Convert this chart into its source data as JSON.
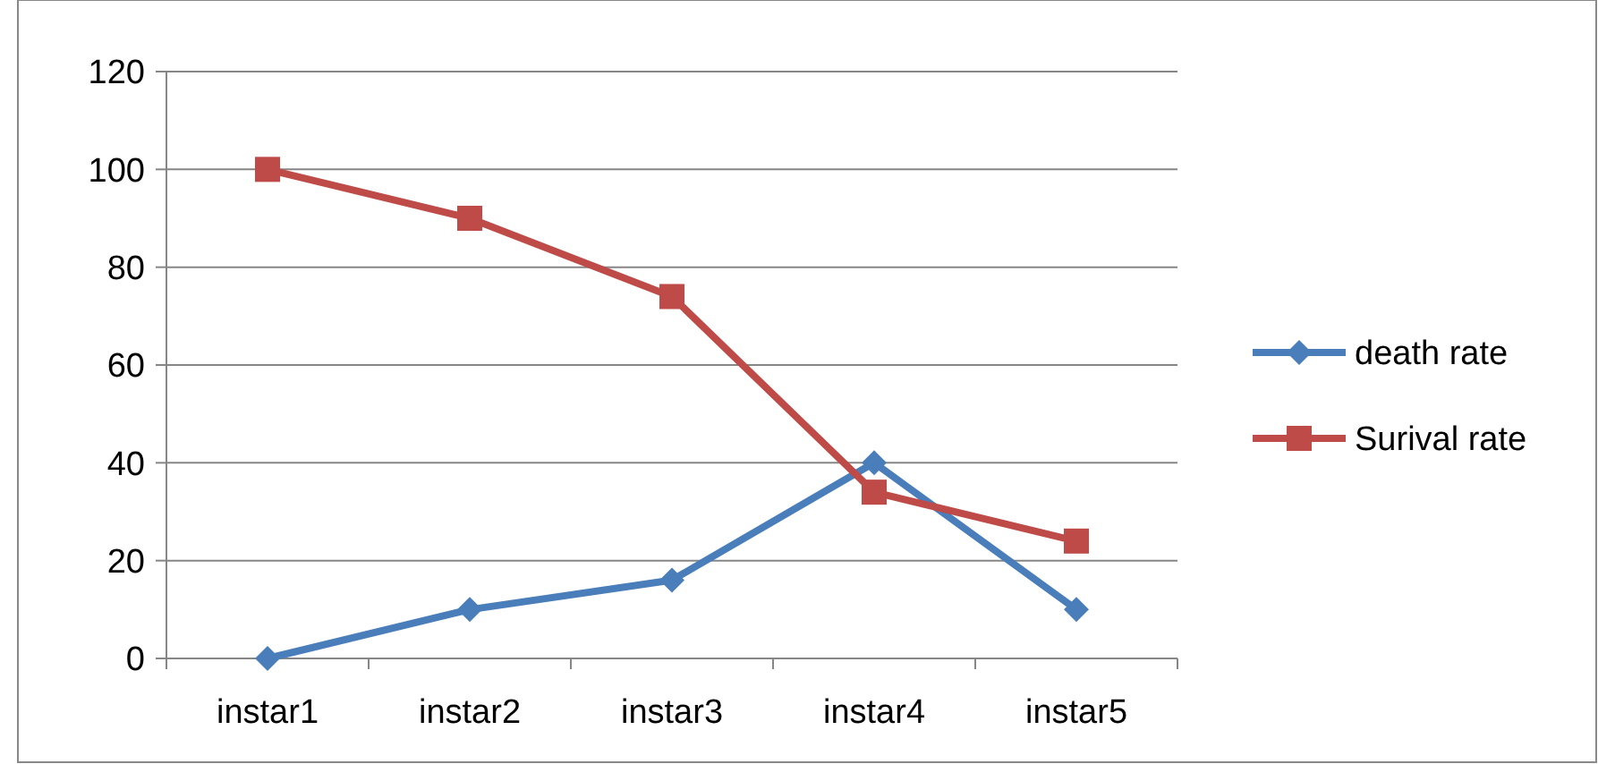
{
  "chart_data": {
    "type": "line",
    "categories": [
      "instar1",
      "instar2",
      "instar3",
      "instar4",
      "instar5"
    ],
    "series": [
      {
        "name": "death rate",
        "color": "#4a7ebb",
        "marker": "diamond",
        "values": [
          0,
          10,
          16,
          40,
          10
        ]
      },
      {
        "name": "Surival rate",
        "color": "#be4b48",
        "marker": "square",
        "values": [
          100,
          90,
          74,
          34,
          24
        ]
      }
    ],
    "ylim": [
      0,
      120
    ],
    "yticks": [
      0,
      20,
      40,
      60,
      80,
      100,
      120
    ],
    "grid": "y",
    "legend": "right",
    "line_style": "solid"
  }
}
